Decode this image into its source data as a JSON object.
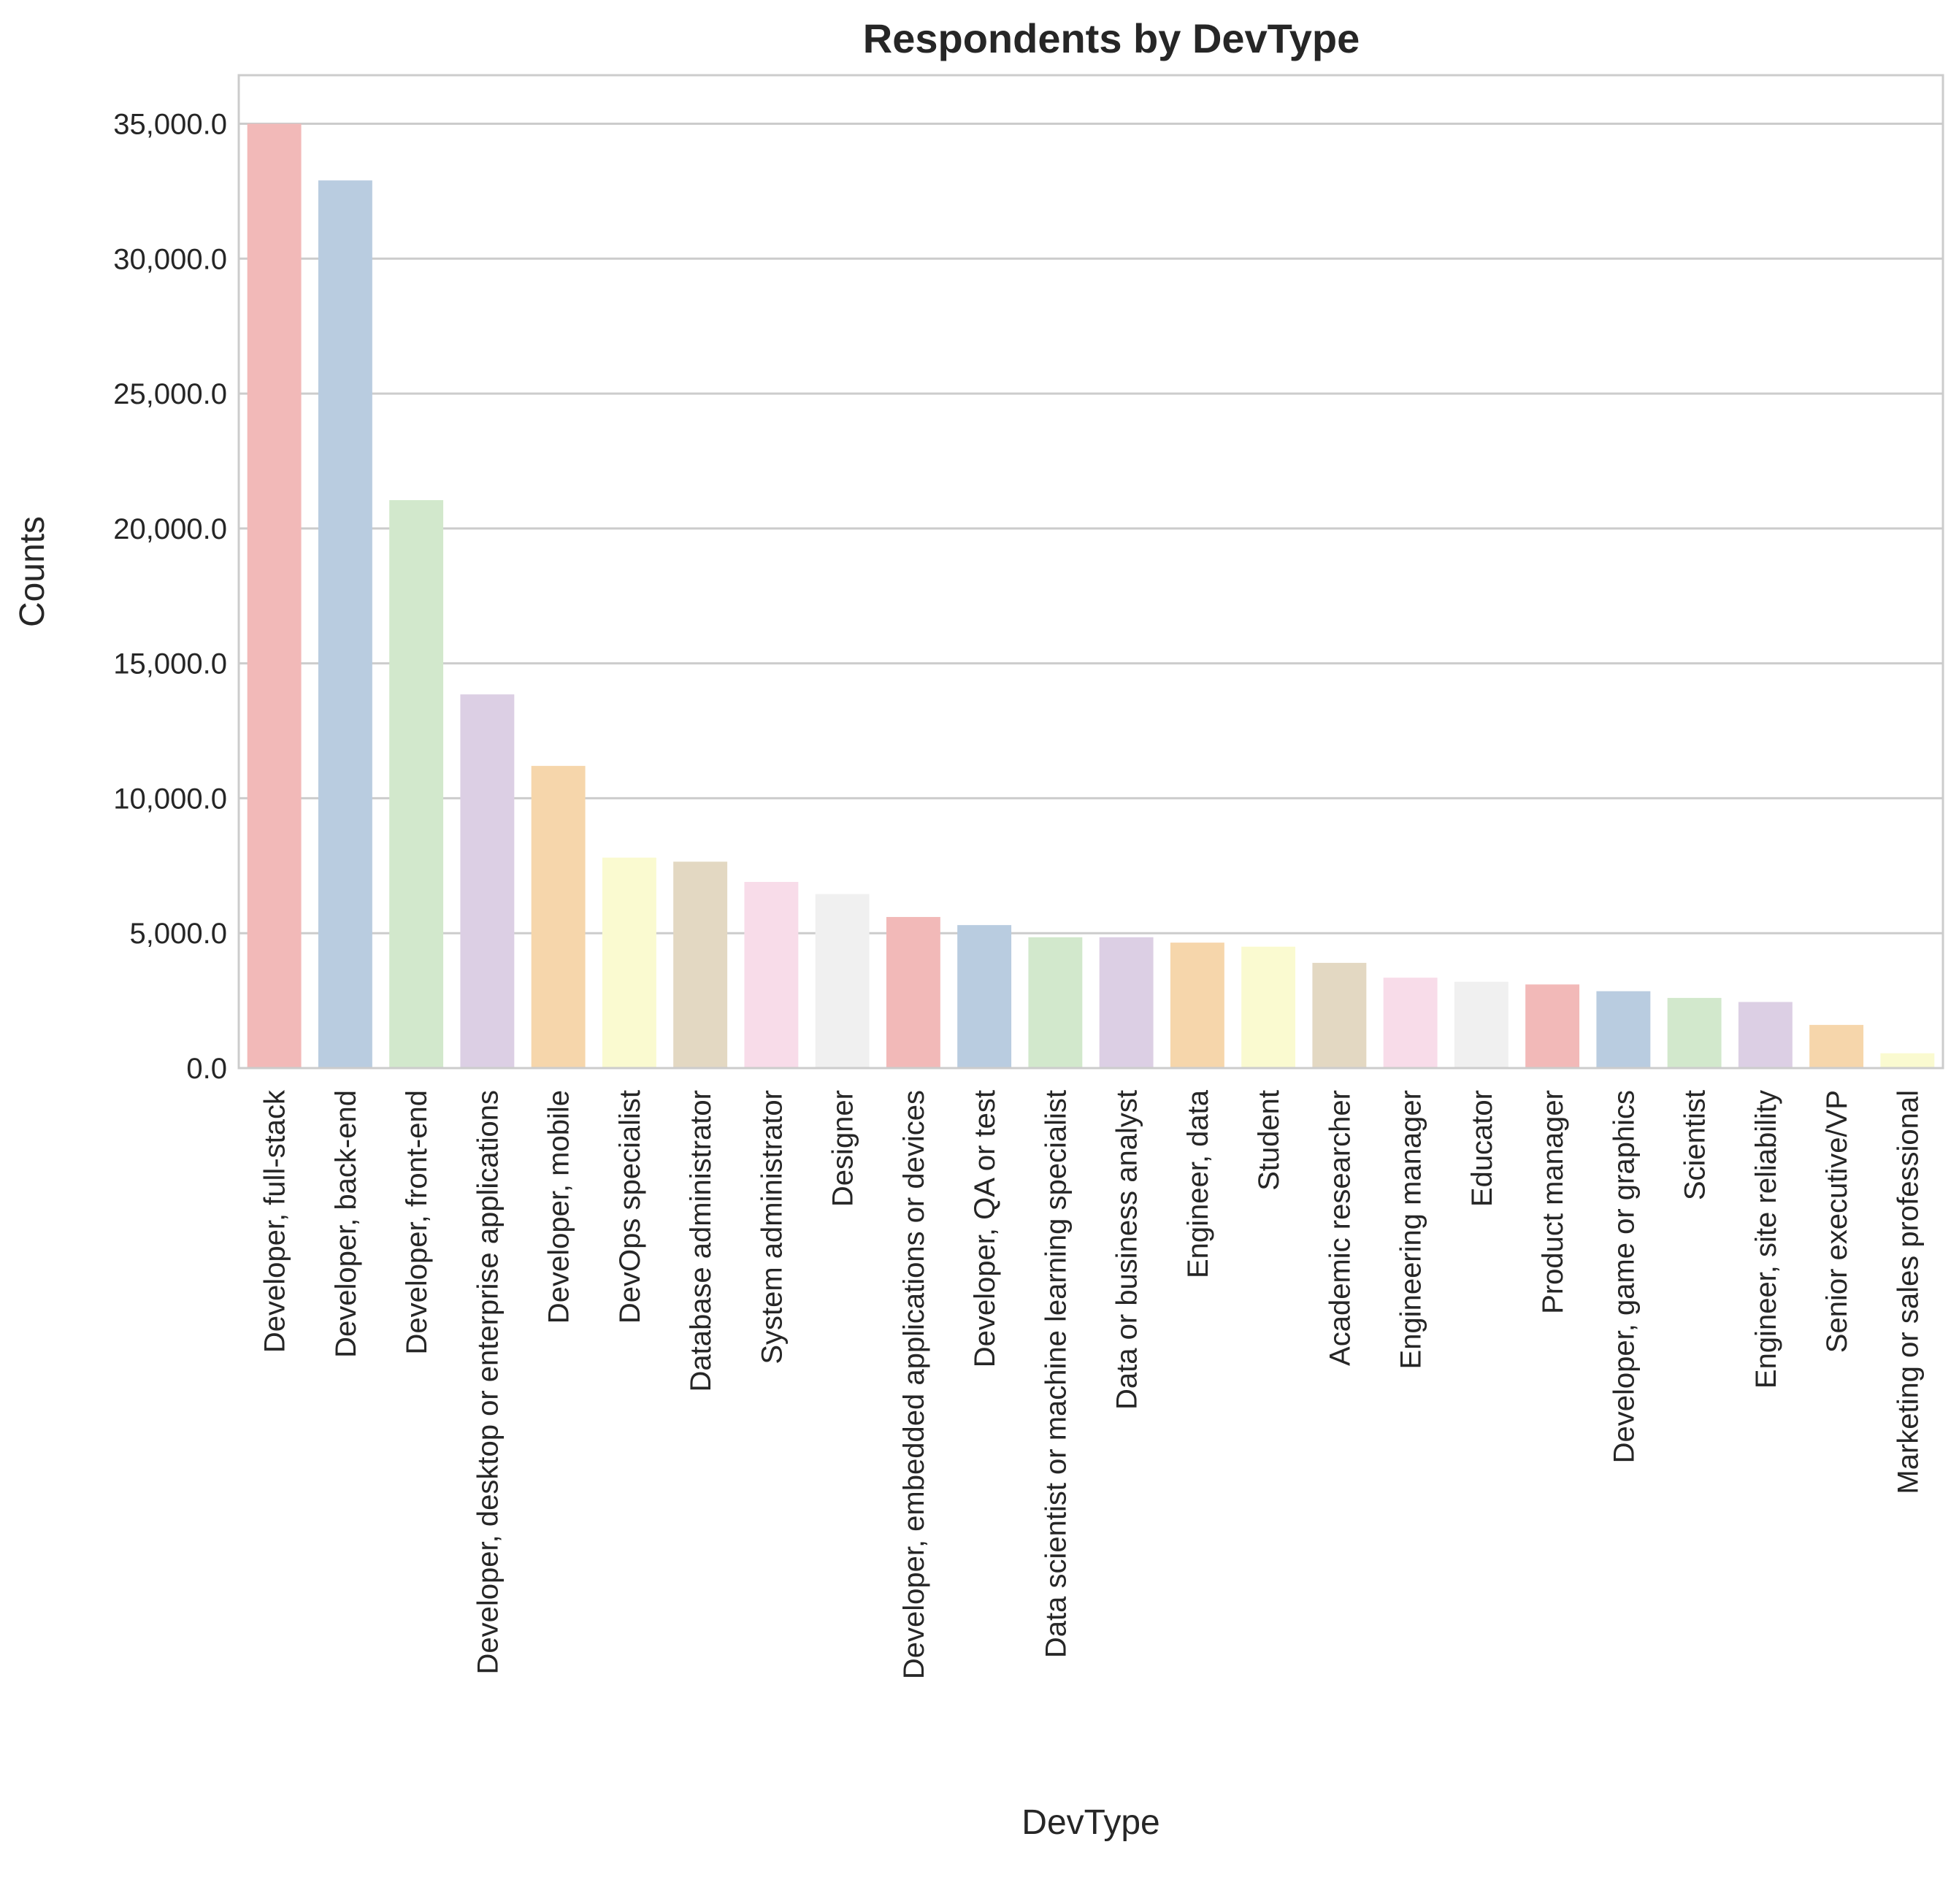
{
  "chart_data": {
    "type": "bar",
    "title": "Respondents by DevType",
    "xlabel": "DevType",
    "ylabel": "Counts",
    "ylim": [
      0,
      36800
    ],
    "yticks": [
      0,
      5000,
      10000,
      15000,
      20000,
      25000,
      30000,
      35000
    ],
    "ytick_labels": [
      "0.0",
      "5,000.0",
      "10,000.0",
      "15,000.0",
      "20,000.0",
      "25,000.0",
      "30,000.0",
      "35,000.0"
    ],
    "grid": "horizontal",
    "categories": [
      "Developer, full-stack",
      "Developer, back-end",
      "Developer, front-end",
      "Developer, desktop or enterprise applications",
      "Developer, mobile",
      "DevOps specialist",
      "Database administrator",
      "System administrator",
      "Designer",
      "Developer, embedded applications or devices",
      "Developer, QA or test",
      "Data scientist or machine learning specialist",
      "Data or business analyst",
      "Engineer, data",
      "Student",
      "Academic researcher",
      "Engineering manager",
      "Educator",
      "Product manager",
      "Developer, game or graphics",
      "Scientist",
      "Engineer, site reliability",
      "Senior executive/VP",
      "Marketing or sales professional"
    ],
    "values": [
      35000,
      32900,
      21050,
      13850,
      11200,
      7800,
      7650,
      6900,
      6450,
      5600,
      5300,
      4850,
      4850,
      4650,
      4500,
      3900,
      3350,
      3200,
      3100,
      2850,
      2600,
      2450,
      1600,
      550
    ],
    "colors": [
      "#f2b9b8",
      "#b9cce0",
      "#d2e8cc",
      "#dccfe4",
      "#f6d6ab",
      "#fafad0",
      "#e3d8c2",
      "#f8dce9",
      "#f0f0f0"
    ]
  }
}
